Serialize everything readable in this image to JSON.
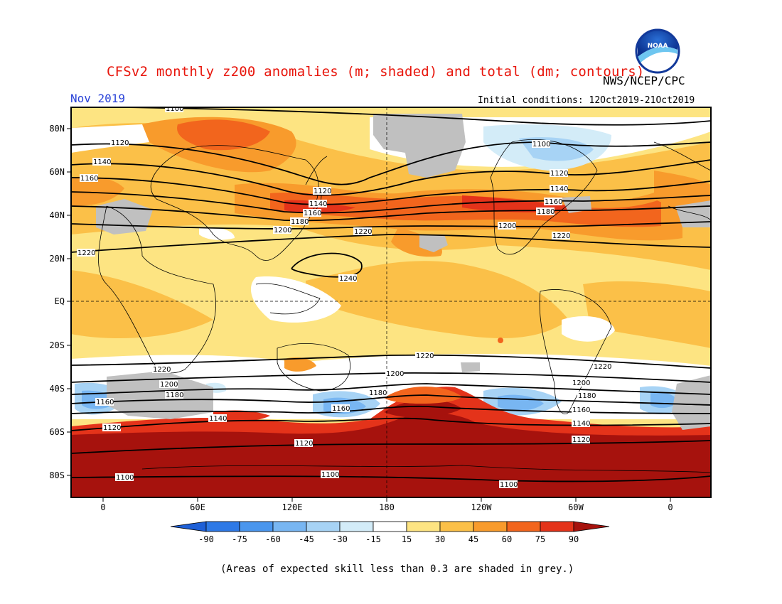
{
  "title": "CFSv2 monthly z200 anomalies (m; shaded) and total (dm; contours)",
  "org": "NWS/NCEP/CPC",
  "logo_text": "NOAA",
  "month": "Nov 2019",
  "initial_conditions": "Initial conditions: 12Oct2019-21Oct2019",
  "footnote": "(Areas of expected skill less than 0.3 are shaded in grey.)",
  "lat_labels": [
    "80N",
    "60N",
    "40N",
    "20N",
    "EQ",
    "20S",
    "40S",
    "60S",
    "80S"
  ],
  "lon_labels": [
    "0",
    "60E",
    "120E",
    "180",
    "120W",
    "60W",
    "0"
  ],
  "colorbar": {
    "ticks": [
      "-90",
      "-75",
      "-60",
      "-45",
      "-30",
      "-15",
      "15",
      "30",
      "45",
      "60",
      "75",
      "90"
    ],
    "colors": [
      "#1e5fd6",
      "#2e79e6",
      "#4a96ee",
      "#78b6f2",
      "#a7d3f5",
      "#d3ecf8",
      "#ffffff",
      "#fde482",
      "#fbc048",
      "#f89b2c",
      "#f2651d",
      "#e4331a",
      "#a6120d"
    ]
  },
  "contour_labels": {
    "c1100": "1100",
    "c1120": "1120",
    "c1140": "1140",
    "c1160": "1160",
    "c1180": "1180",
    "c1200": "1200",
    "c1220": "1220",
    "c1240": "1240"
  },
  "chart_data": {
    "type": "heatmap",
    "variable": "200-hPa geopotential height anomaly (m); total height contours (dm)",
    "colorbar_levels": [
      -90,
      -75,
      -60,
      -45,
      -30,
      -15,
      15,
      30,
      45,
      60,
      75,
      90
    ],
    "lat_range": [
      -90,
      90
    ],
    "lon_range": [
      -20,
      380
    ],
    "contour_levels_dm": [
      1100,
      1120,
      1140,
      1160,
      1180,
      1200,
      1220,
      1240
    ]
  }
}
